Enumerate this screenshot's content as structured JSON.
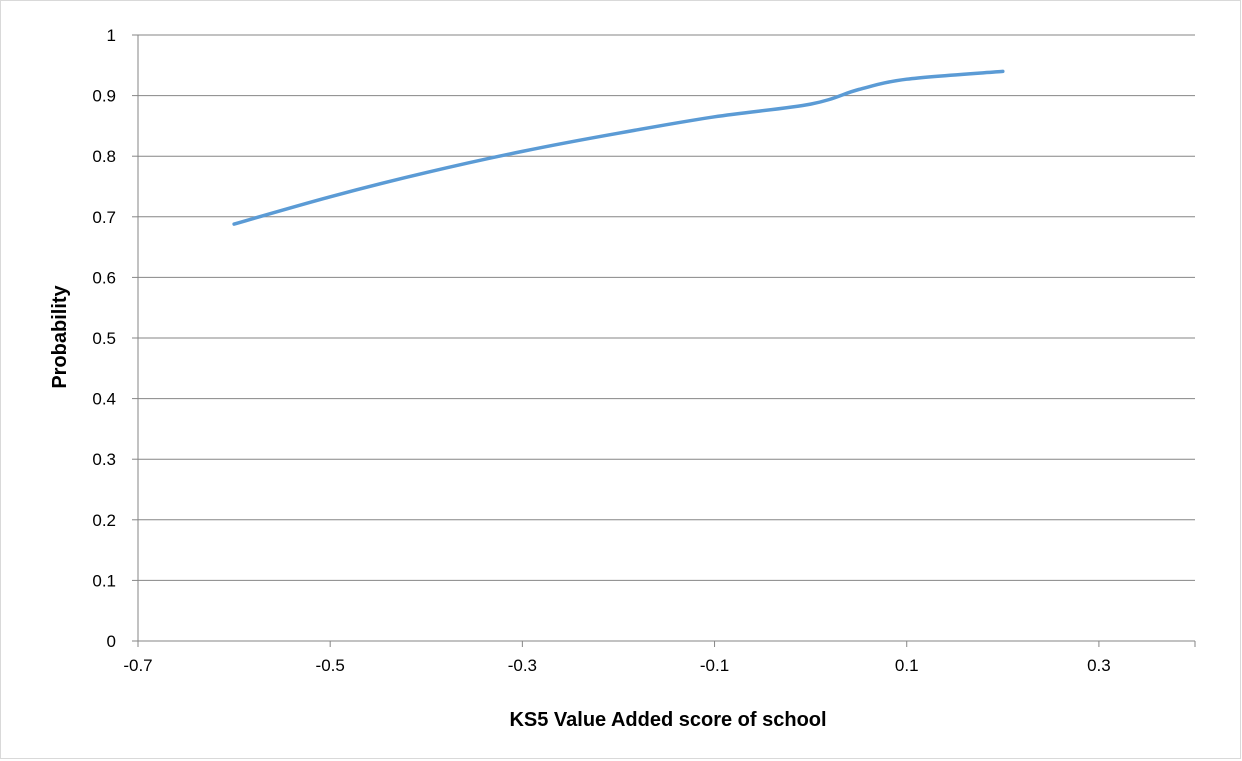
{
  "chart_data": {
    "type": "line",
    "title": "",
    "xlabel": "KS5 Value Added score of school",
    "ylabel": "Probability",
    "xlim": [
      -0.7,
      0.4
    ],
    "ylim": [
      0,
      1
    ],
    "xticks": [
      -0.7,
      -0.5,
      -0.3,
      -0.1,
      0.1,
      0.3
    ],
    "xtick_labels": [
      "-0.7",
      "-0.5",
      "-0.3",
      "-0.1",
      "0.1",
      "0.3"
    ],
    "yticks": [
      0,
      0.1,
      0.2,
      0.3,
      0.4,
      0.5,
      0.6,
      0.7,
      0.8,
      0.9,
      1
    ],
    "ytick_labels": [
      "0",
      "0.1",
      "0.2",
      "0.3",
      "0.4",
      "0.5",
      "0.6",
      "0.7",
      "0.8",
      "0.9",
      "1"
    ],
    "grid": "horizontal",
    "legend": "none",
    "colors": {
      "line": "#5b9bd5",
      "grid": "#868686",
      "axis": "#868686"
    },
    "series": [
      {
        "x": [
          -0.6,
          -0.5,
          -0.4,
          -0.3,
          -0.2,
          -0.1,
          0.0,
          0.05,
          0.1,
          0.2
        ],
        "values": [
          0.688,
          0.733,
          0.773,
          0.808,
          0.838,
          0.865,
          0.886,
          0.91,
          0.927,
          0.94
        ]
      }
    ]
  }
}
